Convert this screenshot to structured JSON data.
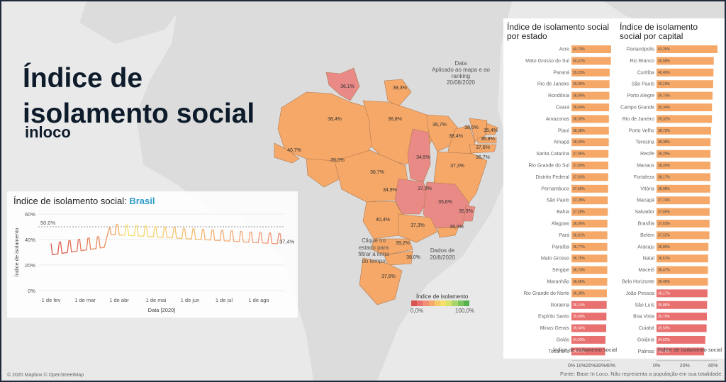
{
  "dashboard": {
    "title_line1": "Índice de",
    "title_line2": "isolamento social",
    "subtitle": "inloco",
    "credits": "© 2020 Mapbox © OpenStreetMap",
    "source": "Fonte: Base In Loco. Não representa a população em sua totalidade."
  },
  "date_filter": {
    "line1": "Data",
    "line2": "Aplicado ao mapa e ao ranking",
    "line3": "20/08/2020"
  },
  "map": {
    "hint_click": "Clique no\nestado para\nfiltrar a linha\ndo tempo",
    "hint_date": "Dados de\n20/8/2020",
    "legend_title": "Índice de isolamento",
    "legend_min": "0,0%",
    "legend_max": "100,0%",
    "legend_colors": [
      "#d9534f",
      "#e86f6f",
      "#f08e76",
      "#f5a96f",
      "#f8c96a",
      "#f6e06a",
      "#d7e36a",
      "#a8d56a",
      "#7cc45e",
      "#53b14f"
    ],
    "state_labels": [
      "36,1%",
      "38,3%",
      "38,4%",
      "36,8%",
      "36,7%",
      "38,6%",
      "35,4%",
      "38,4%",
      "36,8%",
      "37,6%",
      "36,7%",
      "40,7%",
      "39,0%",
      "36,7%",
      "34,5%",
      "37,3%",
      "34,9%",
      "37,0%",
      "35,6%",
      "35,9%",
      "40,4%",
      "37,3%",
      "39,0%",
      "39,2%",
      "38,0%",
      "37,8%"
    ]
  },
  "timeline": {
    "title_prefix": "Índice de isolamento social:",
    "title_region": "Brasil",
    "reference_label": "50,0%",
    "last_value_label": "37,4%",
    "y_title": "Índice de isolamento",
    "x_title": "Data [2020]"
  },
  "ranking_estado": {
    "title": "Índice de isolamento social por estado",
    "axis_title": "Índice de isolamento social"
  },
  "ranking_capital": {
    "title": "Índice de isolamento social por capital",
    "axis_title": "Índice de isolamento social"
  },
  "colors": {
    "orange": "#f5a868",
    "red": "#e8706f",
    "pink_state": "#e98a86",
    "ocean": "#e9e9e9",
    "land": "#dadada",
    "dark_text": "#0d1b2a",
    "accent_blue": "#2e9cca"
  },
  "chart_data": [
    {
      "type": "bar",
      "title": "Índice de isolamento social por estado",
      "categories": [
        "Acre",
        "Mato Grosso do Sul",
        "Paraná",
        "Rio de Janeiro",
        "Rondônia",
        "Ceará",
        "Amazonas",
        "Piauí",
        "Amapá",
        "Santa Catarina",
        "Rio Grande do Sul",
        "Distrito Federal",
        "Pernambuco",
        "São Paulo",
        "Bahia",
        "Alagoas",
        "Pará",
        "Paraíba",
        "Mato Grosso",
        "Sergipe",
        "Maranhão",
        "Rio Grande do Norte",
        "Roraima",
        "Espírito Santo",
        "Minas Gerais",
        "Goiás",
        "Tocantins"
      ],
      "values": [
        40.7,
        40.41,
        39.23,
        39.05,
        38.89,
        38.64,
        38.39,
        38.38,
        38.3,
        37.96,
        37.8,
        37.63,
        37.6,
        37.28,
        37.28,
        36.9,
        36.81,
        36.77,
        36.75,
        36.74,
        36.66,
        36.38,
        36.14,
        35.89,
        35.64,
        34.92,
        34.47
      ],
      "value_labels": [
        "40,70%",
        "40,41%",
        "39,23%",
        "39,05%",
        "38,89%",
        "38,64%",
        "38,39%",
        "38,38%",
        "38,30%",
        "37,96%",
        "37,80%",
        "37,63%",
        "37,60%",
        "37,28%",
        "37,28%",
        "36,90%",
        "36,81%",
        "36,77%",
        "36,75%",
        "36,74%",
        "36,66%",
        "36,38%",
        "36,14%",
        "35,89%",
        "35,64%",
        "34,92%",
        "34,47%"
      ],
      "xlabel": "Índice de isolamento social",
      "xlim": [
        0,
        40
      ],
      "ticks": [
        "0%",
        "10%",
        "20%",
        "30%",
        "40%"
      ],
      "red_from_index": 22
    },
    {
      "type": "bar",
      "title": "Índice de isolamento social por capital",
      "categories": [
        "Florianópolis",
        "Rio Branco",
        "Curitiba",
        "São Paulo",
        "Porto Alegre",
        "Campo Grande",
        "Rio de Janeiro",
        "Porto Velho",
        "Teresina",
        "Recife",
        "Manaus",
        "Fortaleza",
        "Vitória",
        "Macapá",
        "Salvador",
        "Brasília",
        "Belém",
        "Aracaju",
        "Natal",
        "Maceió",
        "Belo Horizonte",
        "João Pessoa",
        "São Luís",
        "Boa Vista",
        "Cuiabá",
        "Goiânia",
        "Palmas"
      ],
      "values": [
        43.25,
        40.58,
        40.4,
        40.19,
        39.74,
        39.34,
        39.32,
        38.72,
        38.38,
        38.29,
        38.26,
        38.17,
        38.08,
        37.74,
        37.65,
        37.63,
        37.52,
        36.8,
        36.61,
        36.47,
        36.45,
        36.17,
        35.86,
        35.7,
        35.5,
        34.62,
        33.79
      ],
      "value_labels": [
        "43,25%",
        "40,58%",
        "40,40%",
        "40,19%",
        "39,74%",
        "39,34%",
        "39,32%",
        "38,72%",
        "38,38%",
        "38,29%",
        "38,26%",
        "38,17%",
        "38,08%",
        "37,74%",
        "37,65%",
        "37,63%",
        "37,52%",
        "36,80%",
        "36,61%",
        "36,47%",
        "36,45%",
        "36,17%",
        "35,86%",
        "35,70%",
        "35,50%",
        "34,62%",
        "33,79%"
      ],
      "xlabel": "Índice de isolamento social",
      "xlim": [
        0,
        43.25
      ],
      "ticks": [
        "0%",
        "20%",
        "40%"
      ],
      "red_from_index": 21
    },
    {
      "type": "line",
      "title": "Índice de isolamento social: Brasil",
      "xlabel": "Data [2020]",
      "ylabel": "Índice de isolamento",
      "yticks": [
        "0%",
        "20%",
        "40%",
        "60%"
      ],
      "ylim": [
        0,
        60
      ],
      "xticks": [
        "1 de fev",
        "1 de mar",
        "1 de abr",
        "1 de mai",
        "1 de jun",
        "1 de jul",
        "1 de ago"
      ],
      "reference_line": 50,
      "last_value": 37.4
    }
  ]
}
